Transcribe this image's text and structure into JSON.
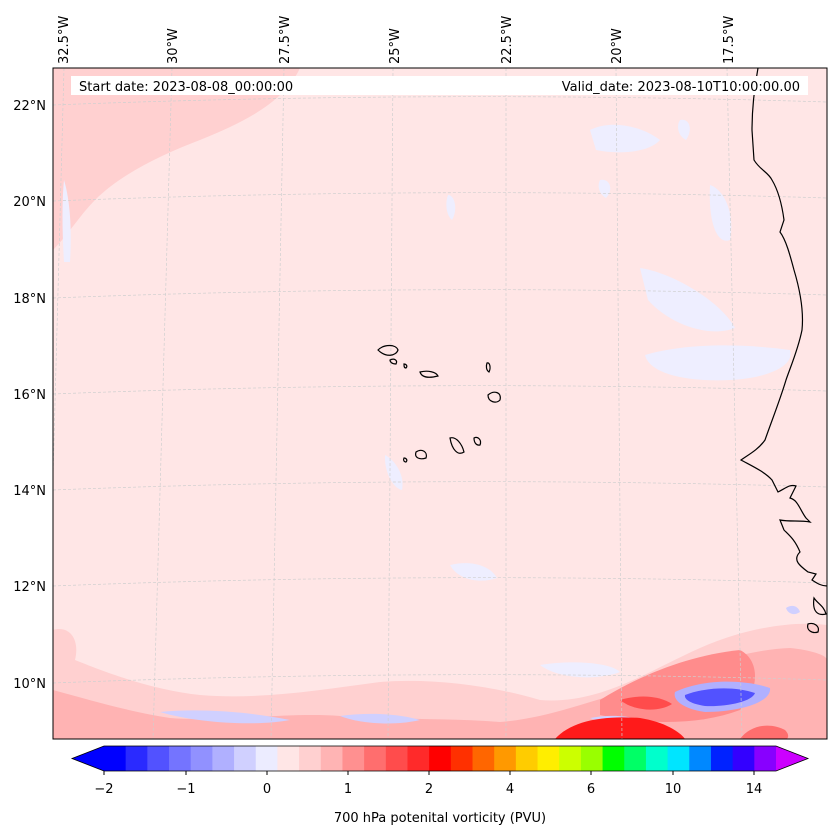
{
  "map": {
    "start_date": "Start date: 2023-08-08_00:00:00",
    "valid_date": "Valid_date: 2023-08-10T10:00:00.00",
    "lon_labels": [
      "32.5°W",
      "30°W",
      "27.5°W",
      "25°W",
      "22.5°W",
      "20°W",
      "17.5°W"
    ],
    "lat_labels": [
      "22°N",
      "20°N",
      "18°N",
      "16°N",
      "14°N",
      "12°N",
      "10°N"
    ],
    "projection": "conic",
    "gridlines": "on",
    "colors": {
      "background_field": "#ffe6e6",
      "light_pink": "#ffd0d0",
      "pink": "#ffb3b3",
      "lavender": "#eeeeff",
      "blue": "#4a4aff",
      "red": "#ff1a1a",
      "coastline": "#000000"
    }
  },
  "colorbar": {
    "title": "700 hPa potenital vorticity (PVU)",
    "tick_labels": [
      "−2",
      "−1",
      "0",
      "1",
      "2",
      "4",
      "6",
      "10",
      "14"
    ],
    "extend": "both",
    "colors": [
      "#0000ff",
      "#2a2aff",
      "#5252ff",
      "#7474ff",
      "#9191ff",
      "#b0b0ff",
      "#d0d0ff",
      "#ececff",
      "#ffe6e6",
      "#ffd0d0",
      "#ffb4b4",
      "#ff9090",
      "#ff6e6e",
      "#ff4c4c",
      "#ff2a2a",
      "#ff0000",
      "#ff3000",
      "#ff6600",
      "#ff9900",
      "#ffcc00",
      "#ffee00",
      "#ccff00",
      "#99ff00",
      "#00ff00",
      "#00ff66",
      "#00ffcc",
      "#00e5ff",
      "#0088ff",
      "#0022ff",
      "#3300ff",
      "#8800ff"
    ],
    "extend_min_color": "#0000ff",
    "extend_max_color": "#cc00ff"
  }
}
